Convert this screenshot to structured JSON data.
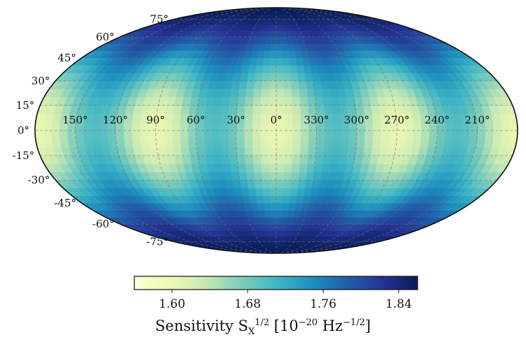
{
  "chart_data": {
    "type": "heatmap",
    "projection": "Mollweide",
    "description_of_field": "sensitivity over sky, high near poles, low near equator, modulated in longitude",
    "longitude_labels": [
      "150°",
      "120°",
      "90°",
      "60°",
      "30°",
      "0°",
      "330°",
      "300°",
      "270°",
      "240°",
      "210°"
    ],
    "latitude_labels": [
      "75°",
      "60°",
      "45°",
      "30°",
      "15°",
      "0°",
      "-15°",
      "-30°",
      "-45°",
      "-60°",
      "-75°"
    ],
    "latitude_values": [
      75,
      60,
      45,
      30,
      15,
      0,
      -15,
      -30,
      -45,
      -60,
      -75
    ],
    "longitude_center_values": [
      150,
      120,
      90,
      60,
      30,
      0,
      -30,
      -60,
      -90,
      -120,
      -150
    ],
    "colorbar": {
      "range": [
        1.56,
        1.86
      ],
      "ticks": [
        "1.60",
        "1.68",
        "1.76",
        "1.84"
      ],
      "tick_values": [
        1.6,
        1.68,
        1.76,
        1.84
      ],
      "colormap": "YlGnBu",
      "colors": [
        "#ffffd9",
        "#edf8b1",
        "#c7e9b4",
        "#7fcdbb",
        "#41b6c4",
        "#1d91c0",
        "#225ea8",
        "#253494",
        "#081d58"
      ]
    },
    "grid": true,
    "grid_style": "dashed"
  },
  "colorbar_label": {
    "prefix": "Sensitivity S",
    "sub": "X",
    "sup": "1/2",
    "units": " [10",
    "exp1": "−20",
    "hz": " Hz",
    "exp2": "−1/2",
    "close": "]"
  }
}
